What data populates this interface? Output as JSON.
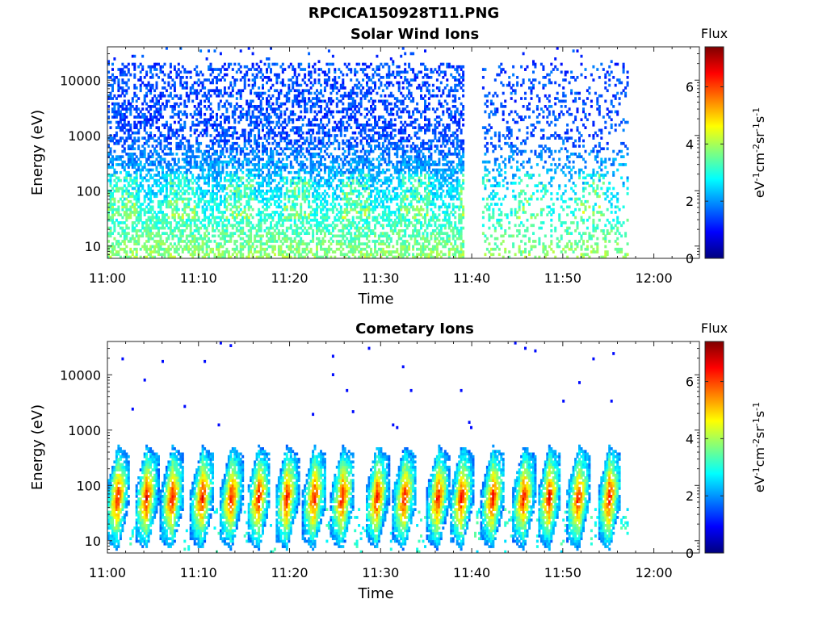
{
  "figure": {
    "title": "RPCICA150928T11.PNG"
  },
  "chart_data": [
    {
      "type": "heatmap",
      "title": "Solar Wind Ions",
      "xlabel": "Time",
      "ylabel": "Energy (eV)",
      "y_scale": "log",
      "xlim": [
        "11:00",
        "12:05"
      ],
      "ylim": [
        6,
        40000
      ],
      "x_ticks": [
        "11:00",
        "11:10",
        "11:20",
        "11:30",
        "11:40",
        "11:50",
        "12:00"
      ],
      "y_ticks": [
        "10",
        "100",
        "1000",
        "10000"
      ],
      "data_extent": [
        "11:00",
        "11:57"
      ],
      "data_gap": [
        "11:39",
        "11:41"
      ],
      "colorbar": {
        "title": "Flux",
        "label": "eV-1cm-2sr-1s-1",
        "range": [
          0,
          7.4
        ],
        "ticks": [
          "0",
          "2",
          "4",
          "6"
        ],
        "colormap": "jet"
      },
      "description_values": {
        "flux_high_energy": 1.2,
        "flux_low_energy": 3.0,
        "peak_energy_eV": 60
      }
    },
    {
      "type": "heatmap",
      "title": "Cometary Ions",
      "xlabel": "Time",
      "ylabel": "Energy (eV)",
      "y_scale": "log",
      "xlim": [
        "11:00",
        "12:05"
      ],
      "ylim": [
        6,
        40000
      ],
      "x_ticks": [
        "11:00",
        "11:10",
        "11:20",
        "11:30",
        "11:40",
        "11:50",
        "12:00"
      ],
      "y_ticks": [
        "10",
        "100",
        "1000",
        "10000"
      ],
      "data_extent": [
        "11:00",
        "11:57"
      ],
      "burst_centers_min": [
        1.0,
        4.2,
        7.0,
        10.3,
        13.5,
        16.5,
        19.6,
        22.6,
        25.7,
        29.5,
        32.5,
        36.2,
        38.8,
        42.2,
        45.6,
        48.4,
        51.6,
        55.0
      ],
      "burst_peak_energy_eV": 60,
      "burst_peak_flux": 6.3,
      "colorbar": {
        "title": "Flux",
        "label": "eV-1cm-2sr-1s-1",
        "range": [
          0,
          7.4
        ],
        "ticks": [
          "0",
          "2",
          "4",
          "6"
        ],
        "colormap": "jet"
      }
    }
  ]
}
